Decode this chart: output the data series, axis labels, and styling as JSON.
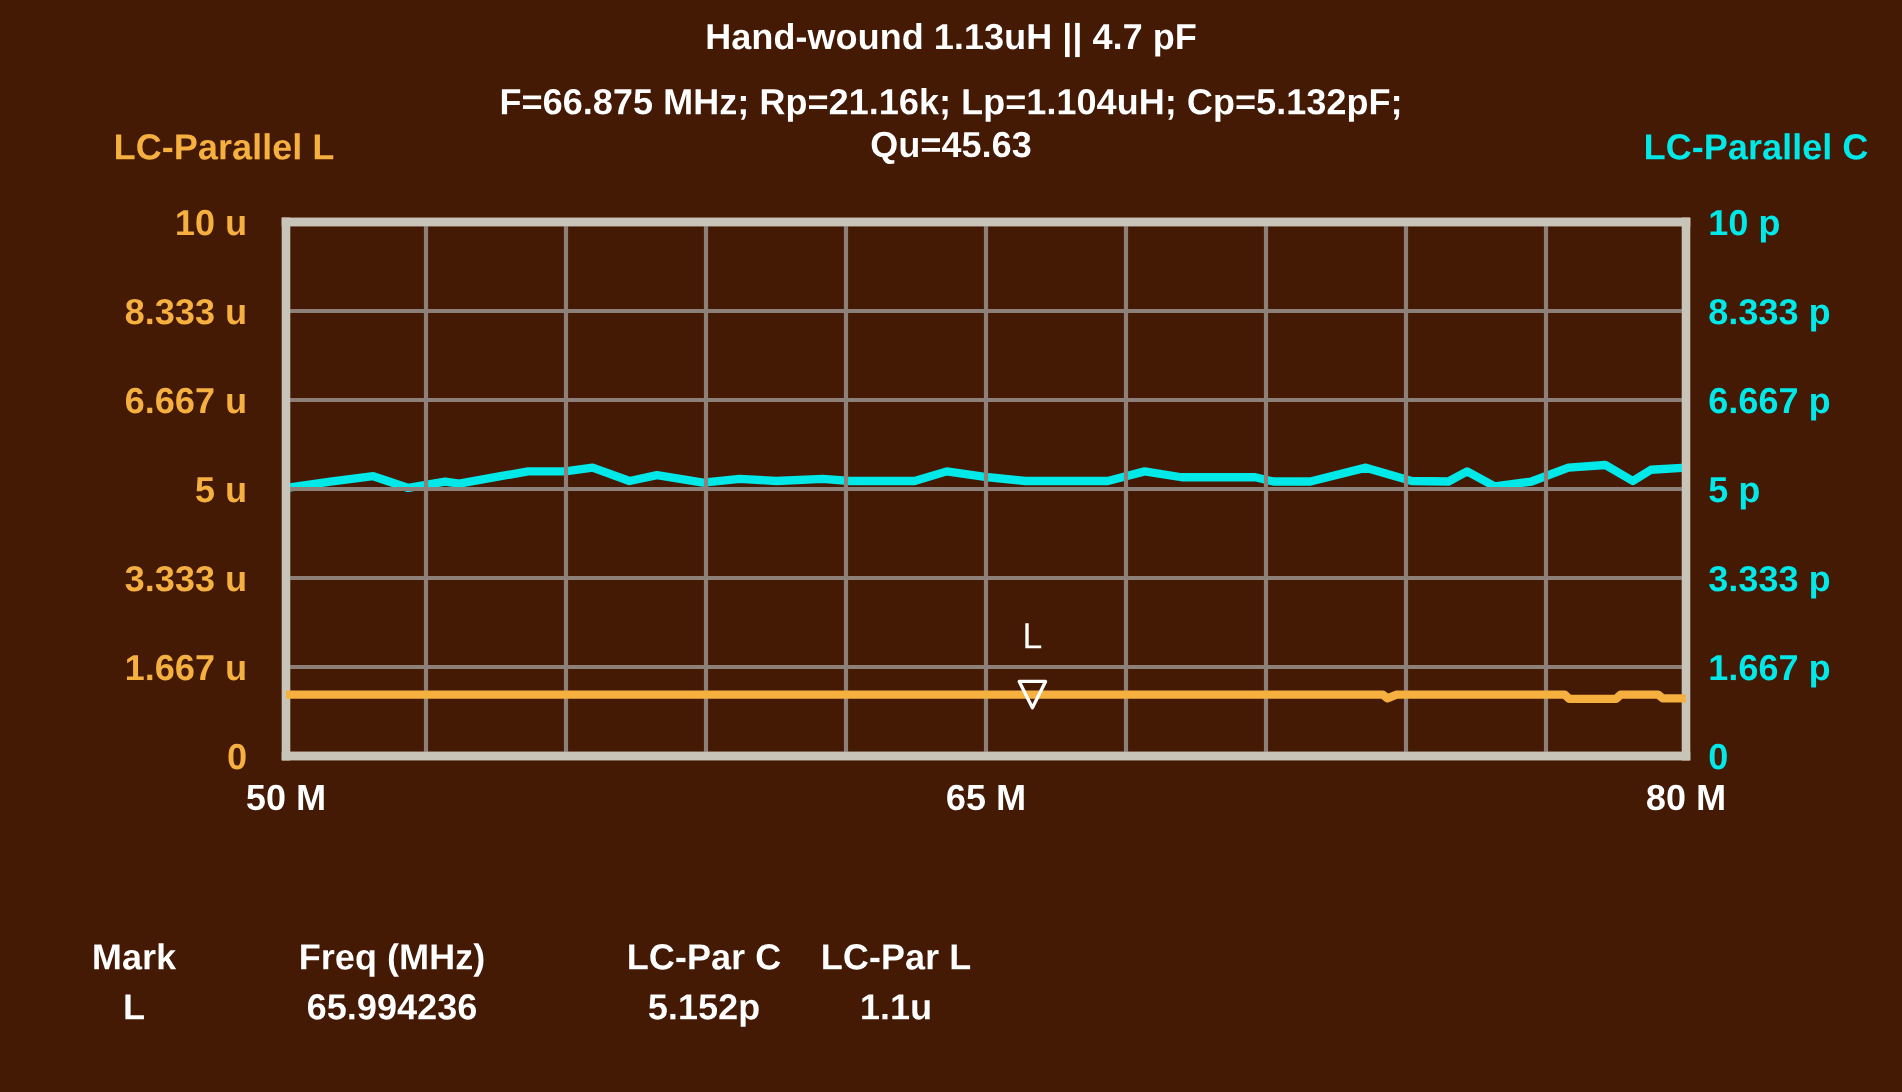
{
  "chart_data": {
    "type": "line",
    "title": "Hand-wound 1.13uH || 4.7 pF",
    "subtitle": "F=66.875 MHz; Rp=21.16k; Lp=1.104uH; Cp=5.132pF; Qu=45.63",
    "ylabel": "LC-Parallel L",
    "y2label": "LC-Parallel C",
    "xlim": [
      50,
      80
    ],
    "xticks": [
      {
        "value": 50,
        "label": "50 M"
      },
      {
        "value": 53,
        "label": null
      },
      {
        "value": 56,
        "label": null
      },
      {
        "value": 59,
        "label": null
      },
      {
        "value": 62,
        "label": null
      },
      {
        "value": 65,
        "label": "65 M"
      },
      {
        "value": 68,
        "label": null
      },
      {
        "value": 71,
        "label": null
      },
      {
        "value": 74,
        "label": null
      },
      {
        "value": 77,
        "label": null
      },
      {
        "value": 80,
        "label": "80 M"
      }
    ],
    "ylim": [
      0,
      10
    ],
    "yticks": [
      0,
      {
        "value": 1.667,
        "label": "1.667 u"
      },
      {
        "value": 3.333,
        "label": "3.333 u"
      },
      {
        "value": 5,
        "label": "5 u"
      },
      {
        "value": 6.667,
        "label": "6.667 u"
      },
      {
        "value": 8.333,
        "label": "8.333 u"
      },
      {
        "value": 10,
        "label": "10 u"
      }
    ],
    "y2lim": [
      0,
      10
    ],
    "y2ticks": [
      0,
      {
        "value": 1.667,
        "label": "1.667 p"
      },
      {
        "value": 3.333,
        "label": "3.333 p"
      },
      {
        "value": 5,
        "label": "5 p"
      },
      {
        "value": 6.667,
        "label": "6.667 p"
      },
      {
        "value": 8.333,
        "label": "8.333 p"
      },
      {
        "value": 10,
        "label": "10 p"
      }
    ],
    "grid": true,
    "series": [
      {
        "color": "#00e8e8",
        "axis": "y2",
        "x": [
          50.0,
          50.95,
          51.87,
          52.62,
          53.41,
          53.71,
          54.6,
          55.19,
          55.98,
          56.57,
          57.36,
          57.95,
          58.94,
          59.72,
          60.51,
          61.5,
          62.09,
          63.47,
          64.16,
          65.05,
          65.84,
          67.61,
          68.4,
          69.19,
          70.77,
          71.16,
          71.95,
          73.14,
          74.12,
          74.91,
          75.31,
          75.9,
          76.69,
          77.48,
          78.27,
          78.86,
          79.25,
          80.0
        ],
        "values": [
          5.02,
          5.14,
          5.24,
          5.02,
          5.14,
          5.1,
          5.24,
          5.33,
          5.33,
          5.4,
          5.15,
          5.26,
          5.12,
          5.19,
          5.15,
          5.19,
          5.15,
          5.15,
          5.33,
          5.22,
          5.15,
          5.15,
          5.33,
          5.22,
          5.22,
          5.14,
          5.14,
          5.4,
          5.15,
          5.14,
          5.33,
          5.05,
          5.14,
          5.4,
          5.45,
          5.15,
          5.36,
          5.4
        ]
      },
      {
        "color": "#f5b040",
        "axis": "y",
        "x": [
          50.0,
          73.5,
          73.6,
          73.8,
          77.4,
          77.5,
          78.5,
          78.6,
          79.4,
          79.5,
          80.0
        ],
        "values": [
          1.15,
          1.15,
          1.08,
          1.15,
          1.15,
          1.07,
          1.07,
          1.15,
          1.15,
          1.08,
          1.08
        ]
      }
    ],
    "annotations": [
      {
        "text": "L",
        "x": 65.994236,
        "y": 1.15
      },
      "Mark",
      "Freq (MHz)",
      "LC-Par C",
      "LC-Par L",
      "L",
      "65.994236",
      "5.152p",
      "1.1u"
    ]
  }
}
